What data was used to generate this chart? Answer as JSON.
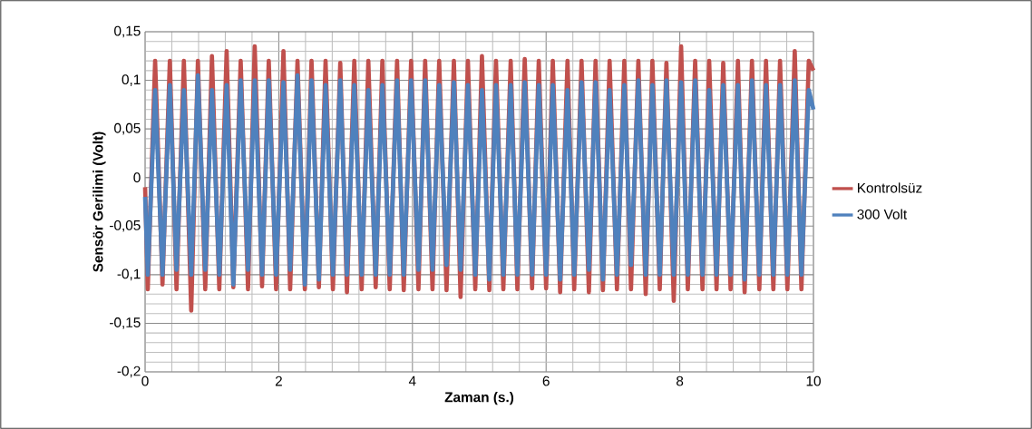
{
  "chart_data": {
    "type": "line",
    "xlabel": "Zaman (s.)",
    "ylabel": "Sensör Gerilimi (Volt)",
    "x": [
      0,
      0.04,
      0.15,
      0.26,
      0.37,
      0.47,
      0.58,
      0.69,
      0.79,
      0.9,
      1.0,
      1.11,
      1.22,
      1.32,
      1.43,
      1.54,
      1.64,
      1.75,
      1.85,
      1.96,
      2.07,
      2.17,
      2.28,
      2.39,
      2.49,
      2.6,
      2.7,
      2.81,
      2.92,
      3.02,
      3.13,
      3.24,
      3.34,
      3.45,
      3.55,
      3.66,
      3.77,
      3.87,
      3.98,
      4.09,
      4.19,
      4.3,
      4.4,
      4.51,
      4.62,
      4.72,
      4.83,
      4.94,
      5.04,
      5.15,
      5.25,
      5.36,
      5.47,
      5.57,
      5.68,
      5.79,
      5.89,
      6.0,
      6.1,
      6.21,
      6.32,
      6.42,
      6.53,
      6.64,
      6.74,
      6.85,
      6.95,
      7.06,
      7.17,
      7.27,
      7.38,
      7.49,
      7.59,
      7.7,
      7.8,
      7.91,
      8.02,
      8.12,
      8.23,
      8.34,
      8.44,
      8.55,
      8.65,
      8.76,
      8.87,
      8.97,
      9.08,
      9.19,
      9.29,
      9.4,
      9.5,
      9.61,
      9.72,
      9.82,
      9.93,
      10.0
    ],
    "series": [
      {
        "name": "Kontrolsüz",
        "color": "#c0504d",
        "values": [
          -0.01,
          -0.115,
          0.12,
          -0.11,
          0.12,
          -0.115,
          0.12,
          -0.137,
          0.12,
          -0.115,
          0.125,
          -0.115,
          0.13,
          -0.113,
          0.12,
          -0.115,
          0.135,
          -0.112,
          0.12,
          -0.115,
          0.13,
          -0.115,
          0.12,
          -0.115,
          0.12,
          -0.113,
          0.12,
          -0.115,
          0.118,
          -0.118,
          0.12,
          -0.115,
          0.12,
          -0.113,
          0.12,
          -0.115,
          0.12,
          -0.116,
          0.12,
          -0.115,
          0.12,
          -0.115,
          0.12,
          -0.116,
          0.12,
          -0.123,
          0.12,
          -0.115,
          0.125,
          -0.116,
          0.12,
          -0.115,
          0.12,
          -0.115,
          0.122,
          -0.114,
          0.12,
          -0.114,
          0.12,
          -0.118,
          0.12,
          -0.115,
          0.12,
          -0.118,
          0.12,
          -0.116,
          0.12,
          -0.115,
          0.12,
          -0.115,
          0.12,
          -0.12,
          0.12,
          -0.115,
          0.118,
          -0.127,
          0.135,
          -0.115,
          0.12,
          -0.115,
          0.12,
          -0.115,
          0.118,
          -0.115,
          0.12,
          -0.118,
          0.12,
          -0.115,
          0.12,
          -0.115,
          0.12,
          -0.115,
          0.13,
          -0.115,
          0.12,
          0.11
        ]
      },
      {
        "name": "300 Volt",
        "color": "#4f81bd",
        "values": [
          -0.02,
          -0.1,
          0.09,
          -0.1,
          0.095,
          -0.095,
          0.09,
          -0.1,
          0.105,
          -0.095,
          0.09,
          -0.1,
          0.095,
          -0.11,
          0.1,
          -0.095,
          0.1,
          -0.1,
          0.1,
          -0.1,
          0.098,
          -0.095,
          0.105,
          -0.11,
          0.1,
          -0.105,
          0.095,
          -0.1,
          0.1,
          -0.1,
          0.095,
          -0.1,
          0.09,
          -0.1,
          0.095,
          -0.1,
          0.1,
          -0.1,
          0.1,
          -0.095,
          0.1,
          -0.095,
          0.095,
          -0.09,
          0.098,
          -0.095,
          0.095,
          -0.1,
          0.09,
          -0.105,
          0.095,
          -0.1,
          0.095,
          -0.1,
          0.098,
          -0.1,
          0.095,
          -0.1,
          0.095,
          -0.105,
          0.09,
          -0.1,
          0.098,
          -0.095,
          0.098,
          -0.105,
          0.09,
          -0.1,
          0.095,
          -0.09,
          0.1,
          -0.1,
          0.095,
          -0.1,
          0.1,
          -0.1,
          0.098,
          -0.1,
          0.1,
          -0.1,
          0.09,
          -0.1,
          0.095,
          -0.1,
          0.095,
          -0.105,
          0.1,
          -0.1,
          0.095,
          -0.1,
          0.095,
          -0.1,
          0.1,
          -0.1,
          0.09,
          0.07
        ]
      }
    ],
    "xlim": [
      0,
      10
    ],
    "xticks": [
      0,
      2,
      4,
      6,
      8,
      10
    ],
    "ylim": [
      -0.2,
      0.15
    ],
    "yticks": [
      {
        "value": -0.2,
        "label": "-0,2"
      },
      {
        "value": -0.15,
        "label": "-0,15"
      },
      {
        "value": -0.1,
        "label": "-0,1"
      },
      {
        "value": -0.05,
        "label": "-0,05"
      },
      {
        "value": 0,
        "label": "0"
      },
      {
        "value": 0.05,
        "label": "0,05"
      },
      {
        "value": 0.1,
        "label": "0,1"
      },
      {
        "value": 0.15,
        "label": "0,15"
      }
    ],
    "grid": true,
    "legend": "right",
    "marker": "none",
    "line_style": "solid"
  }
}
